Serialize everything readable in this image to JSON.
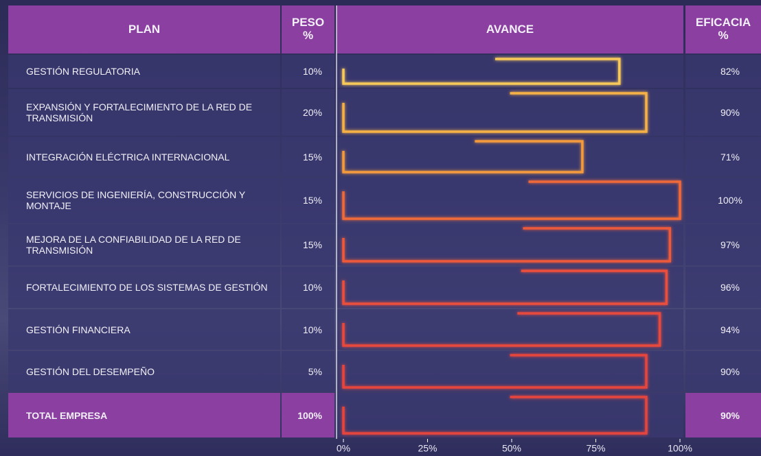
{
  "table": {
    "headers": {
      "plan": "PLAN",
      "peso": [
        "PESO",
        "%"
      ],
      "avance": "AVANCE",
      "eficacia": [
        "EFICACIA",
        "%"
      ]
    },
    "rows": [
      {
        "plan": "GESTIÓN REGULATORIA",
        "peso": "10%",
        "eficacia": {
          "value": 82,
          "label": "82%"
        }
      },
      {
        "plan": "EXPANSIÓN Y FORTALECIMIENTO DE LA RED DE TRANSMISIÓN",
        "peso": "20%",
        "eficacia": {
          "value": 90,
          "label": "90%"
        }
      },
      {
        "plan": "INTEGRACIÓN ELÉCTRICA INTERNACIONAL",
        "peso": "15%",
        "eficacia": {
          "value": 71,
          "label": "71%"
        }
      },
      {
        "plan": "SERVICIOS DE INGENIERÍA, CONSTRUCCIÓN Y MONTAJE",
        "peso": "15%",
        "eficacia": {
          "value": 100,
          "label": "100%"
        }
      },
      {
        "plan": "MEJORA DE LA CONFIABILIDAD DE LA RED DE TRANSMISIÓN",
        "peso": "15%",
        "eficacia": {
          "value": 97,
          "label": "97%"
        }
      },
      {
        "plan": "FORTALECIMIENTO DE LOS SISTEMAS DE GESTIÓN",
        "peso": "10%",
        "eficacia": {
          "value": 96,
          "label": "96%"
        }
      },
      {
        "plan": "GESTIÓN FINANCIERA",
        "peso": "10%",
        "eficacia": {
          "value": 94,
          "label": "94%"
        }
      },
      {
        "plan": "GESTIÓN DEL DESEMPEÑO",
        "peso": "5%",
        "eficacia": {
          "value": 90,
          "label": "90%"
        }
      }
    ],
    "total": {
      "plan": "TOTAL EMPRESA",
      "peso": "100%",
      "eficacia": {
        "value": 90,
        "label": "90%"
      }
    }
  },
  "avance_axis": {
    "xlim": [
      0,
      100
    ],
    "xticks": [
      {
        "value": 0,
        "label": "0%"
      },
      {
        "value": 25,
        "label": "25%"
      },
      {
        "value": 50,
        "label": "50%"
      },
      {
        "value": 75,
        "label": "75%"
      },
      {
        "value": 100,
        "label": "100%"
      }
    ],
    "colors": [
      "#f7c85a",
      "#f5b144",
      "#f29a3e",
      "#ee6a3a",
      "#ec5a3a",
      "#ea4f3c",
      "#e8483c",
      "#e6453d",
      "#e5443e"
    ]
  }
}
